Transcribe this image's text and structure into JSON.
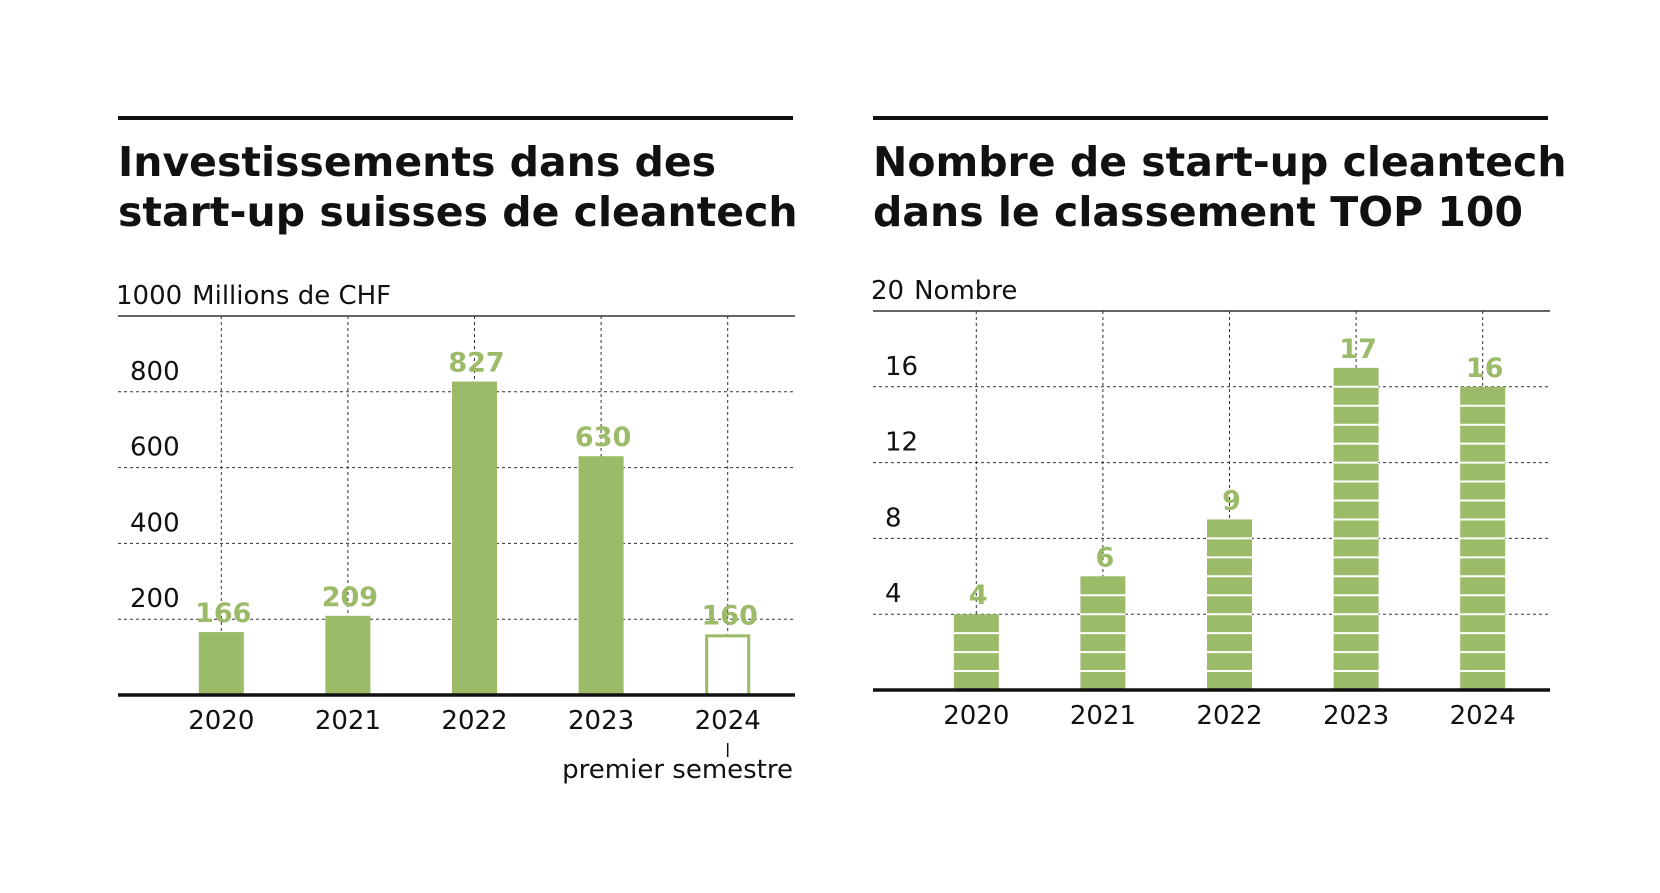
{
  "chart_data": [
    {
      "type": "bar",
      "title": [
        "Investissements dans des",
        "start-up suisses de cleantech"
      ],
      "y_label": "Millions de CHF",
      "categories": [
        "2020",
        "2021",
        "2022",
        "2023",
        "2024"
      ],
      "values": [
        166,
        209,
        827,
        630,
        160
      ],
      "bar_styles": [
        "solid",
        "solid",
        "solid",
        "solid",
        "outline"
      ],
      "annotation": {
        "category_index": 4,
        "text": "premier semestre"
      },
      "color": "#9bbb69",
      "ylim": [
        0,
        1000
      ],
      "yticks": [
        200,
        400,
        600,
        800,
        1000
      ],
      "grid": true
    },
    {
      "type": "stacked-units",
      "title": [
        "Nombre de start-up cleantech",
        "dans le classement TOP 100"
      ],
      "y_label": "Nombre",
      "categories": [
        "2020",
        "2021",
        "2022",
        "2023",
        "2024"
      ],
      "values": [
        4,
        6,
        9,
        17,
        16
      ],
      "color": "#9bbb69",
      "ylim": [
        0,
        20
      ],
      "yticks": [
        4,
        8,
        12,
        16,
        20
      ],
      "grid": true
    }
  ]
}
